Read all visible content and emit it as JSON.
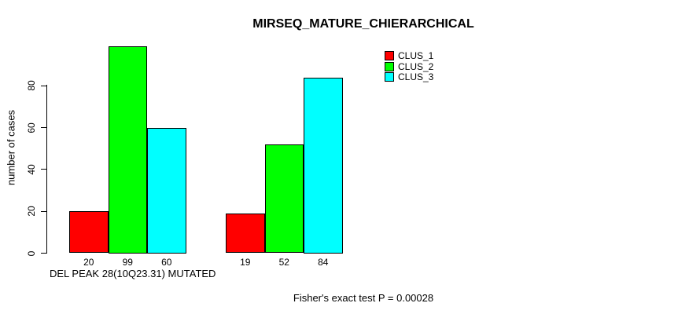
{
  "chart_data": {
    "type": "bar",
    "title": "MIRSEQ_MATURE_CHIERARCHICAL",
    "xlabel": "DEL PEAK 28(10Q23.31) MUTATED",
    "ylabel": "number of cases",
    "ylim": [
      0,
      99
    ],
    "yticks": [
      0,
      20,
      40,
      60,
      80
    ],
    "series": [
      {
        "name": "CLUS_1",
        "color": "#ff0000",
        "values": [
          20,
          19
        ]
      },
      {
        "name": "CLUS_2",
        "color": "#00ff00",
        "values": [
          99,
          52
        ]
      },
      {
        "name": "CLUS_3",
        "color": "#00ffff",
        "values": [
          60,
          84
        ]
      }
    ],
    "bar_value_labels": [
      [
        20,
        99,
        60
      ],
      [
        19,
        52,
        84
      ]
    ],
    "legend_position": "top-right",
    "grid": false,
    "annotation": "Fisher's exact test P = 0.00028"
  }
}
